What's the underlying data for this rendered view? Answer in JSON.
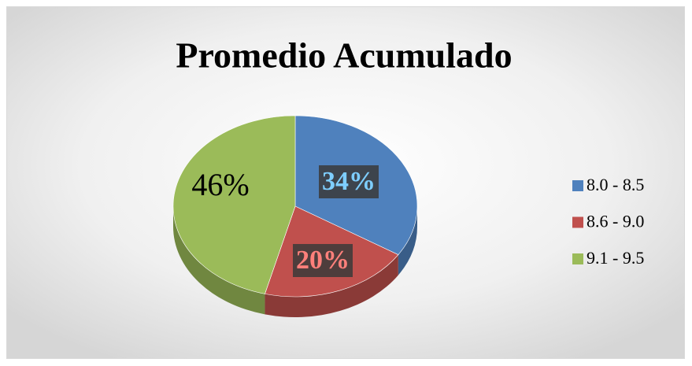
{
  "chart_data": {
    "type": "pie",
    "title": "Promedio Acumulado",
    "categories": [
      "8.0 - 8.5",
      "8.6 - 9.0",
      "9.1 - 9.5"
    ],
    "values": [
      34,
      20,
      46
    ],
    "value_labels": [
      "34%",
      "20%",
      "46%"
    ],
    "colors": [
      "#4f81bd",
      "#c0504d",
      "#9bbb59"
    ],
    "legend": "right"
  }
}
